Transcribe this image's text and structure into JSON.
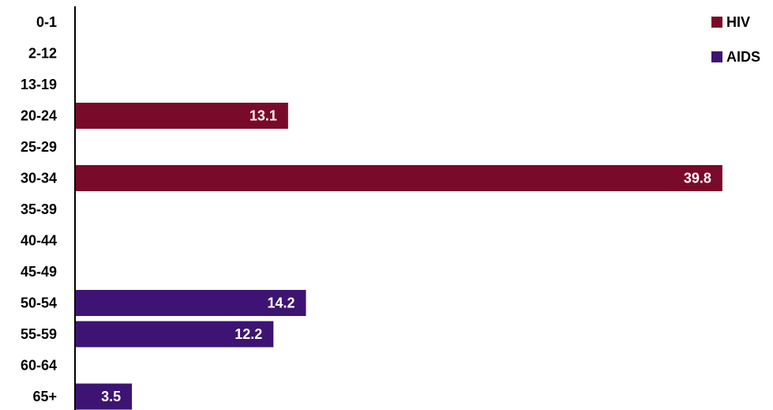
{
  "chart_data": {
    "type": "bar",
    "orientation": "horizontal",
    "categories": [
      "0-1",
      "2-12",
      "13-19",
      "20-24",
      "25-29",
      "30-34",
      "35-39",
      "40-44",
      "45-49",
      "50-54",
      "55-59",
      "60-64",
      "65+"
    ],
    "series": [
      {
        "name": "HIV",
        "color": "#7a0a2a",
        "values": [
          null,
          null,
          null,
          13.1,
          null,
          39.8,
          null,
          null,
          null,
          null,
          null,
          null,
          null
        ]
      },
      {
        "name": "AIDS",
        "color": "#3d1473",
        "values": [
          null,
          null,
          null,
          null,
          null,
          null,
          null,
          null,
          null,
          14.2,
          12.2,
          null,
          3.5
        ]
      }
    ],
    "xlim": [
      0,
      40
    ],
    "grid": false,
    "legend_position": "top-right",
    "data_labels": true
  }
}
